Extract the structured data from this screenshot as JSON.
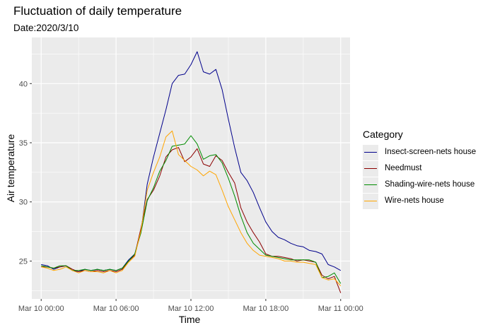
{
  "chart_data": {
    "type": "line",
    "title": "Fluctuation of daily temperature",
    "subtitle": "Date:2020/3/10",
    "xlabel": "Time",
    "ylabel": "Air temperature",
    "x_ticks": [
      "Mar 10 00:00",
      "Mar 10 06:00",
      "Mar 10 12:00",
      "Mar 10 18:00",
      "Mar 11 00:00"
    ],
    "y_ticks": [
      25,
      30,
      35,
      40
    ],
    "xlim_hours": [
      -0.75,
      24.75
    ],
    "ylim": [
      21.8,
      43.9
    ],
    "legend_title": "Category",
    "legend_position": "right",
    "grid": true,
    "x_hours": [
      0,
      0.5,
      1,
      1.5,
      2,
      2.5,
      3,
      3.5,
      4,
      4.5,
      5,
      5.5,
      6,
      6.5,
      7,
      7.5,
      8,
      8.5,
      9,
      9.5,
      10,
      10.5,
      11,
      11.5,
      12,
      12.5,
      13,
      13.5,
      14,
      14.5,
      15,
      15.5,
      16,
      16.5,
      17,
      17.5,
      18,
      18.5,
      19,
      19.5,
      20,
      20.5,
      21,
      21.5,
      22,
      22.5,
      23,
      23.5,
      24
    ],
    "series": [
      {
        "name": "Insect-screen-nets house",
        "color": "#00008b",
        "values": [
          24.7,
          24.6,
          24.3,
          24.5,
          24.6,
          24.2,
          24.1,
          24.3,
          24.2,
          24.3,
          24.2,
          24.3,
          24.2,
          24.4,
          25.1,
          25.6,
          27.5,
          31.5,
          33.8,
          35.8,
          37.8,
          40.0,
          40.7,
          40.8,
          41.6,
          42.7,
          41.0,
          40.8,
          41.2,
          39.5,
          37.0,
          34.6,
          32.5,
          31.8,
          30.8,
          29.5,
          28.3,
          27.5,
          27.0,
          26.8,
          26.5,
          26.3,
          26.2,
          25.9,
          25.8,
          25.6,
          24.7,
          24.5,
          24.2
        ]
      },
      {
        "name": "Needmust",
        "color": "#8b0000",
        "values": [
          24.5,
          24.5,
          24.4,
          24.5,
          24.6,
          24.3,
          24.1,
          24.2,
          24.1,
          24.2,
          24.1,
          24.2,
          24.1,
          24.3,
          25.0,
          25.5,
          27.8,
          30.2,
          31.0,
          32.2,
          33.8,
          34.4,
          34.6,
          33.4,
          33.8,
          34.5,
          33.2,
          33.0,
          33.9,
          33.5,
          32.5,
          31.6,
          29.5,
          28.3,
          27.4,
          26.6,
          25.6,
          25.4,
          25.4,
          25.3,
          25.2,
          25.0,
          25.1,
          25.0,
          24.9,
          23.8,
          23.5,
          23.7,
          22.3
        ]
      },
      {
        "name": "Shading-wire-nets house",
        "color": "#008b00",
        "values": [
          24.6,
          24.5,
          24.4,
          24.6,
          24.6,
          24.2,
          24.2,
          24.3,
          24.2,
          24.3,
          24.2,
          24.3,
          24.2,
          24.4,
          25.0,
          25.6,
          27.4,
          30.1,
          31.2,
          32.6,
          33.5,
          34.7,
          34.8,
          34.9,
          35.6,
          34.9,
          33.6,
          33.9,
          34.0,
          33.3,
          32.0,
          30.5,
          28.8,
          27.4,
          26.5,
          26.0,
          25.5,
          25.4,
          25.3,
          25.2,
          25.1,
          25.1,
          25.1,
          25.1,
          24.9,
          23.6,
          23.7,
          24.0,
          23.1
        ]
      },
      {
        "name": "Wire-nets house",
        "color": "#ffa500",
        "values": [
          24.5,
          24.4,
          24.2,
          24.3,
          24.5,
          24.2,
          24.0,
          24.2,
          24.1,
          24.1,
          24.0,
          24.2,
          24.0,
          24.2,
          24.9,
          25.4,
          27.6,
          31.0,
          32.5,
          33.8,
          35.5,
          36.0,
          34.0,
          33.5,
          33.0,
          32.7,
          32.2,
          32.6,
          32.3,
          31.0,
          29.6,
          28.5,
          27.4,
          26.5,
          25.9,
          25.5,
          25.4,
          25.3,
          25.2,
          25.0,
          25.0,
          24.9,
          24.9,
          24.8,
          24.7,
          23.6,
          23.4,
          23.5,
          22.9
        ]
      }
    ]
  }
}
